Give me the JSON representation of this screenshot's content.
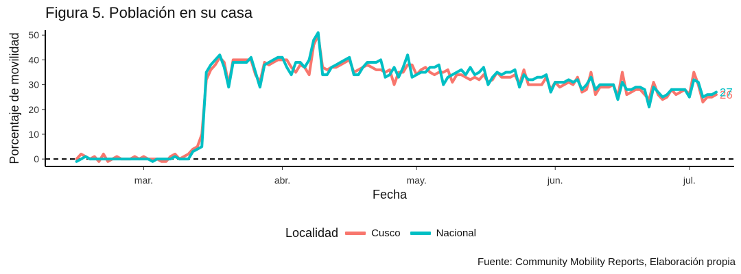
{
  "title": "Figura 5. Población en su casa",
  "caption": "Fuente: Community Mobility Reports, Elaboración propia",
  "chart_data": {
    "type": "line",
    "xlabel": "Fecha",
    "ylabel": "Porcentaje de movilidad",
    "ylim": [
      -3,
      52
    ],
    "yticks": [
      0,
      10,
      20,
      30,
      40,
      50
    ],
    "xlim": [
      "2020-02-08",
      "2020-07-11"
    ],
    "xticks": [
      {
        "date": "2020-03-01",
        "label": "mar."
      },
      {
        "date": "2020-04-01",
        "label": "abr."
      },
      {
        "date": "2020-05-01",
        "label": "may."
      },
      {
        "date": "2020-06-01",
        "label": "jun."
      },
      {
        "date": "2020-07-01",
        "label": "jul."
      }
    ],
    "reference_line": {
      "y": 0,
      "style": "dashed"
    },
    "grid": false,
    "legend": {
      "title": "Localidad",
      "position": "bottom"
    },
    "end_labels": [
      {
        "series": "Cusco",
        "text": "26"
      },
      {
        "series": "Nacional",
        "text": "27"
      }
    ],
    "series": [
      {
        "name": "Cusco",
        "color": "#F8766D",
        "start": "2020-02-15",
        "values": [
          0,
          2,
          1,
          0,
          1,
          -1,
          2,
          -1,
          0,
          1,
          0,
          0,
          0,
          1,
          0,
          1,
          0,
          0,
          0,
          -1,
          -1,
          1,
          2,
          0,
          1,
          2,
          4,
          5,
          10,
          32,
          36,
          38,
          41,
          39,
          30,
          40,
          40,
          40,
          40,
          40,
          34,
          31,
          39,
          38,
          39,
          40,
          40,
          40,
          37,
          35,
          38,
          37,
          34,
          46,
          50,
          37,
          36,
          37,
          37,
          38,
          39,
          40,
          35,
          36,
          37,
          38,
          37,
          36,
          36,
          35,
          36,
          30,
          35,
          35,
          38,
          38,
          34,
          36,
          37,
          35,
          34,
          35,
          35,
          36,
          31,
          34,
          34,
          33,
          32,
          33,
          32,
          34,
          31,
          32,
          35,
          33,
          33,
          33,
          34,
          30,
          36,
          30,
          30,
          30,
          30,
          33,
          28,
          31,
          29,
          30,
          31,
          30,
          33,
          27,
          28,
          35,
          26,
          29,
          29,
          29,
          30,
          25,
          35,
          26,
          27,
          28,
          28,
          26,
          24,
          31,
          26,
          24,
          25,
          28,
          26,
          27,
          28,
          26,
          35,
          30,
          23,
          25,
          25,
          26
        ]
      },
      {
        "name": "Nacional",
        "color": "#00BFC4",
        "start": "2020-02-15",
        "values": [
          -1,
          0,
          1,
          0,
          0,
          0,
          0,
          0,
          0,
          0,
          0,
          0,
          0,
          0,
          0,
          0,
          0,
          -1,
          0,
          0,
          0,
          0,
          1,
          0,
          0,
          0,
          3,
          4,
          5,
          35,
          38,
          40,
          42,
          37,
          29,
          39,
          39,
          39,
          39,
          41,
          35,
          29,
          38,
          39,
          40,
          41,
          41,
          37,
          34,
          39,
          39,
          37,
          40,
          48,
          51,
          34,
          34,
          37,
          38,
          39,
          40,
          41,
          34,
          34,
          37,
          39,
          39,
          39,
          40,
          33,
          34,
          37,
          33,
          37,
          42,
          33,
          34,
          35,
          35,
          37,
          37,
          38,
          30,
          33,
          34,
          35,
          36,
          34,
          37,
          34,
          35,
          37,
          30,
          33,
          35,
          34,
          35,
          35,
          36,
          29,
          34,
          32,
          32,
          33,
          33,
          34,
          27,
          31,
          31,
          31,
          32,
          31,
          32,
          28,
          30,
          33,
          28,
          30,
          30,
          30,
          30,
          24,
          31,
          28,
          28,
          29,
          29,
          28,
          21,
          29,
          27,
          25,
          26,
          28,
          28,
          28,
          28,
          25,
          32,
          31,
          25,
          26,
          26,
          27
        ]
      }
    ]
  }
}
